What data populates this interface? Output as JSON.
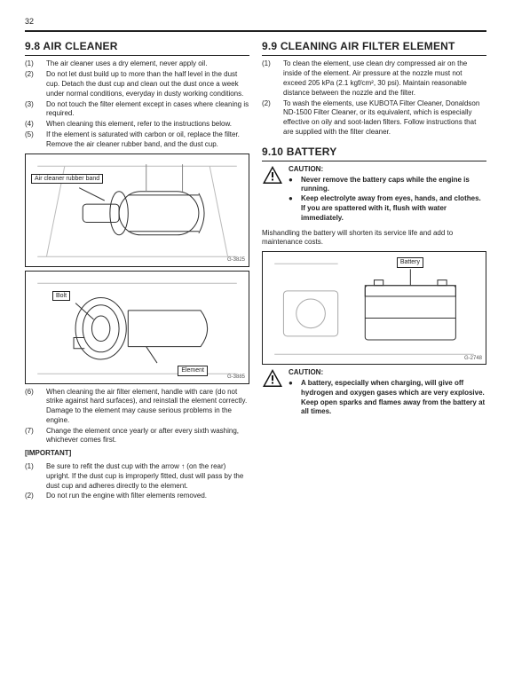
{
  "page_number": "32",
  "left": {
    "heading": "9.8 AIR CLEANER",
    "items_a": [
      {
        "n": "(1)",
        "t": "The air cleaner uses a dry element, never apply oil."
      },
      {
        "n": "(2)",
        "t": "Do not let dust build up to more than the half level in the dust cup. Detach the dust cup and clean out the dust once a week under normal conditions, everyday in dusty working conditions."
      },
      {
        "n": "(3)",
        "t": "Do not touch the filter element except in cases where cleaning is required."
      },
      {
        "n": "(4)",
        "t": "When cleaning this element, refer to the instructions below."
      },
      {
        "n": "(5)",
        "t": "If the element is saturated with carbon or oil, replace the filter.\nRemove the air cleaner rubber band, and the dust cup."
      }
    ],
    "fig1_label": "Air cleaner\nrubber band",
    "fig1_id": "G-3825",
    "fig2_label_bolt": "Bolt",
    "fig2_label_element": "Element",
    "fig2_id": "G-3885",
    "items_b": [
      {
        "n": "(6)",
        "t": "When cleaning the air filter element, handle with care (do not strike against hard surfaces), and reinstall the element correctly.\nDamage to the element may cause serious problems in the engine."
      },
      {
        "n": "(7)",
        "t": "Change the element once yearly or after every sixth washing, whichever comes first."
      }
    ],
    "important_heading": "[IMPORTANT]",
    "important_items": [
      {
        "n": "(1)",
        "t": "Be sure to refit the dust cup with the arrow ↑ (on the rear) upright. If the dust cup is improperly fitted, dust will pass by the dust cup and adheres directly to the element."
      },
      {
        "n": "(2)",
        "t": "Do not run the engine with filter elements removed."
      }
    ]
  },
  "right": {
    "heading_99": "9.9 CLEANING AIR FILTER ELEMENT",
    "items_99": [
      {
        "n": "(1)",
        "t": "To clean the element, use clean dry compressed air on the inside of the element.\nAir pressure at the nozzle must not exceed 205 kPa (2.1 kgf/cm², 30 psi).\nMaintain reasonable distance between the nozzle and the filter."
      },
      {
        "n": "(2)",
        "t": "To wash the elements, use KUBOTA Filter Cleaner, Donaldson ND-1500 Filter Cleaner, or its equivalent, which is especially effective on oily and soot-laden filters.\nFollow instructions that are supplied with the filter cleaner."
      }
    ],
    "heading_910": "9.10 BATTERY",
    "caution1_title": "CAUTION:",
    "caution1_bullets": [
      "Never remove the battery caps while the engine is running.",
      "Keep electrolyte away from eyes, hands, and clothes. If you are spattered with it, flush with water immediately."
    ],
    "mishandling": "Mishandling the battery will shorten its service life and add to maintenance costs.",
    "fig3_label": "Battery",
    "fig3_id": "G-2748",
    "caution2_title": "CAUTION:",
    "caution2_bullets": [
      "A battery, especially when charging, will give off hydrogen and oxygen gases which are very explosive. Keep open sparks and flames away from the battery at all times."
    ]
  }
}
